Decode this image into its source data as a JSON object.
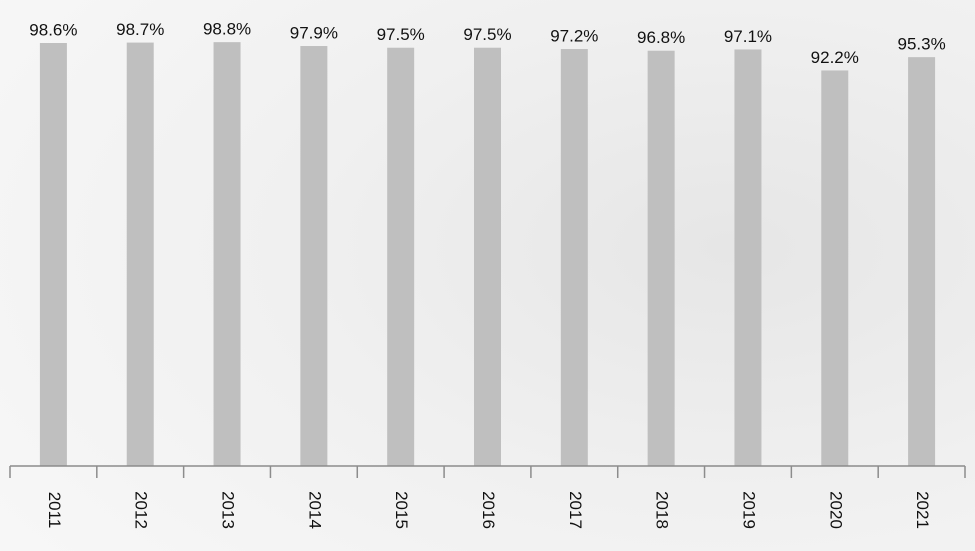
{
  "chart_data": {
    "type": "bar",
    "categories": [
      "2011",
      "2012",
      "2013",
      "2014",
      "2015",
      "2016",
      "2017",
      "2018",
      "2019",
      "2020",
      "2021"
    ],
    "values": [
      98.6,
      98.7,
      98.8,
      97.9,
      97.5,
      97.5,
      97.2,
      96.8,
      97.1,
      92.2,
      95.3
    ],
    "value_labels": [
      "98.6%",
      "98.7%",
      "98.8%",
      "97.9%",
      "97.5%",
      "97.5%",
      "97.2%",
      "96.8%",
      "97.1%",
      "92.2%",
      "95.3%"
    ],
    "color": "#bfbfbf"
  }
}
